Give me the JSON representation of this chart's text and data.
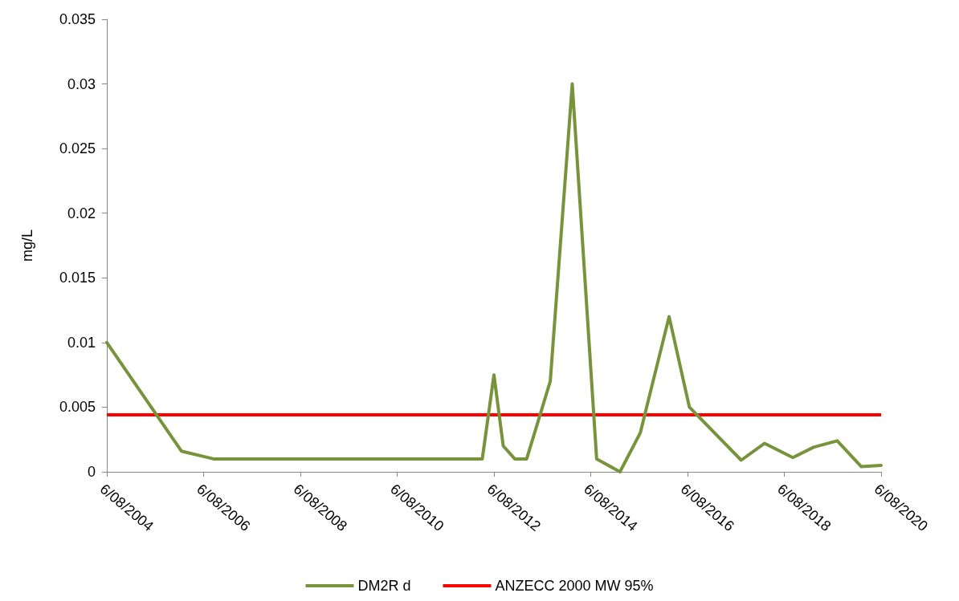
{
  "chart_data": {
    "type": "line",
    "ylabel": "mg/L",
    "x": [
      "2004-08-06",
      "2006-02-20",
      "2006-10-20",
      "2012-05-10",
      "2012-08-06",
      "2012-10-15",
      "2013-01-10",
      "2013-04-10",
      "2013-10-05",
      "2014-03-20",
      "2014-09-20",
      "2015-03-15",
      "2015-08-15",
      "2016-03-20",
      "2016-08-20",
      "2017-09-15",
      "2018-03-10",
      "2018-10-10",
      "2019-03-15",
      "2019-09-10",
      "2020-03-10",
      "2020-08-06"
    ],
    "series": [
      {
        "name": "DM2R d",
        "color": "#77933c",
        "values": [
          0.01,
          0.0016,
          0.001,
          0.001,
          0.0075,
          0.002,
          0.001,
          0.001,
          0.007,
          0.03,
          0.001,
          0,
          0.003,
          0.012,
          0.005,
          0.0009,
          0.0022,
          0.0011,
          0.0019,
          0.0024,
          0.0004,
          0.0005
        ]
      }
    ],
    "ref_lines": [
      {
        "axis": "y",
        "value": 0.0044,
        "label": "ANZECC 2000 MW 95%",
        "color": "#ff0000",
        "line_style": "solid"
      }
    ],
    "xlim": [
      "2004-08-06",
      "2020-08-06"
    ],
    "xticks": [
      {
        "value": "2004-08-06",
        "label": "6/08/2004"
      },
      {
        "value": "2006-08-06",
        "label": "6/08/2006"
      },
      {
        "value": "2008-08-06",
        "label": "6/08/2008"
      },
      {
        "value": "2010-08-06",
        "label": "6/08/2010"
      },
      {
        "value": "2012-08-06",
        "label": "6/08/2012"
      },
      {
        "value": "2014-08-06",
        "label": "6/08/2014"
      },
      {
        "value": "2016-08-06",
        "label": "6/08/2016"
      },
      {
        "value": "2018-08-06",
        "label": "6/08/2018"
      },
      {
        "value": "2020-08-06",
        "label": "6/08/2020"
      }
    ],
    "ylim": [
      0,
      0.035
    ],
    "yticks": [
      0,
      0.005,
      0.01,
      0.015,
      0.02,
      0.025,
      0.03,
      0.035
    ],
    "grid": false,
    "legend": "bottom",
    "marker": "none",
    "line_style": "solid"
  }
}
